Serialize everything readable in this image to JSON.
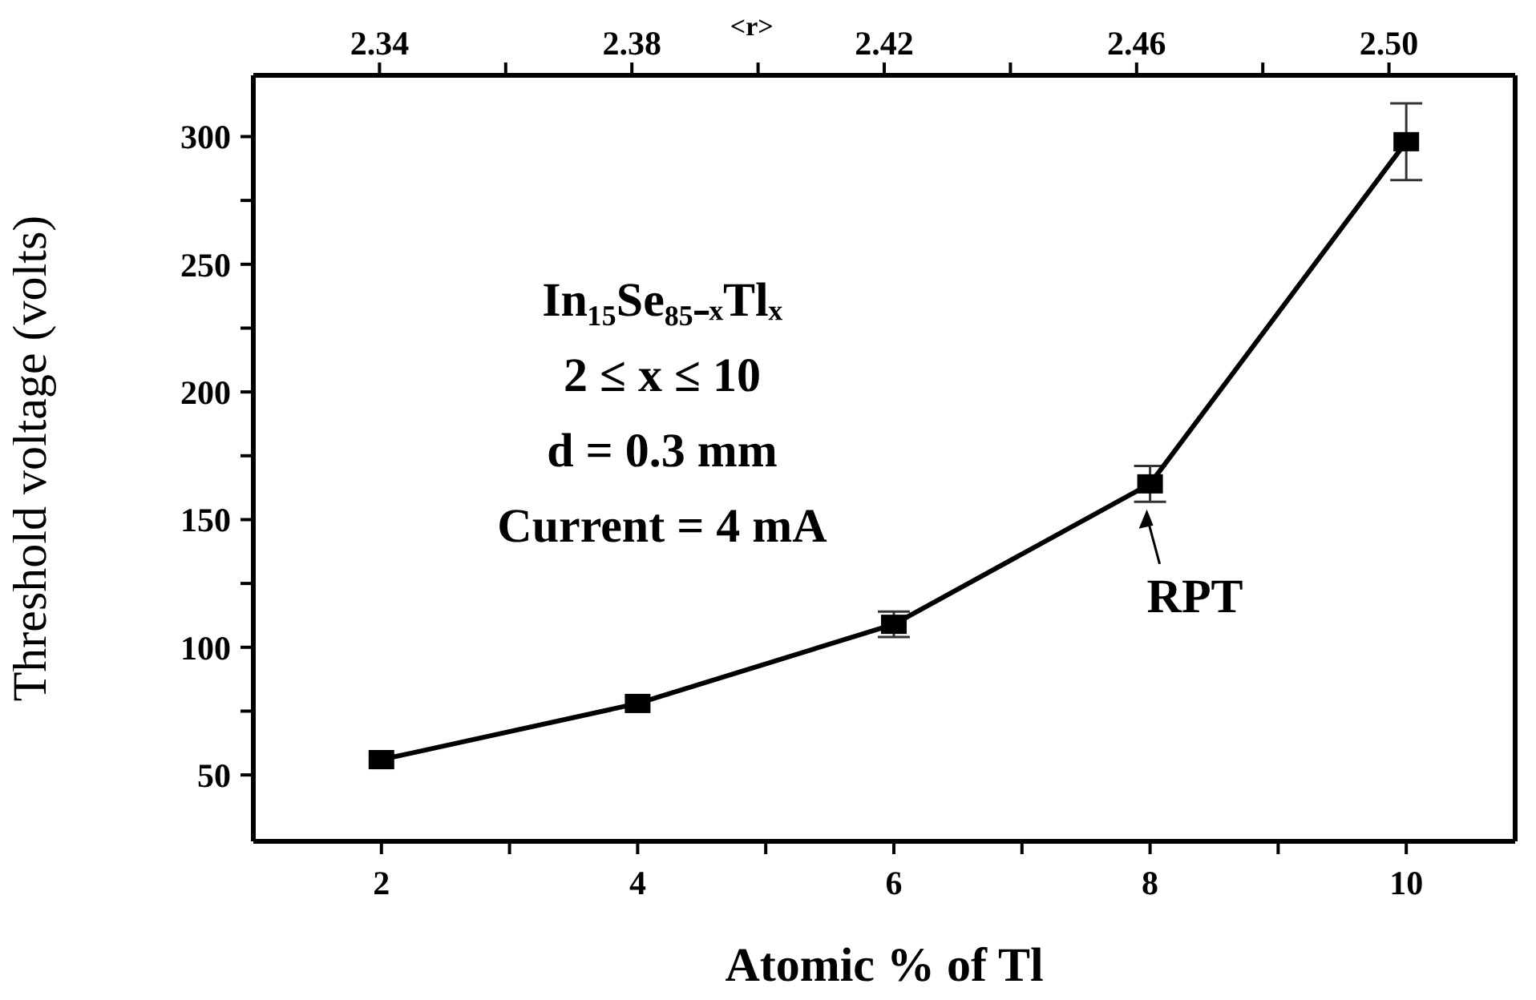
{
  "chart_data": {
    "type": "line",
    "xlabel": "Atomic % of Tl",
    "ylabel": "Threshold voltage (volts)",
    "x2label": "<r>",
    "x": [
      2,
      4,
      6,
      8,
      10
    ],
    "series": [
      {
        "color": "#000000",
        "values": [
          56,
          78,
          109,
          164,
          298
        ],
        "errors": [
          null,
          null,
          5,
          7,
          15
        ]
      }
    ],
    "xlim": [
      1,
      10.85
    ],
    "xticks": [
      2,
      {
        "value": 3,
        "label": null
      },
      4,
      {
        "value": 5,
        "label": null
      },
      6,
      {
        "value": 7,
        "label": null
      },
      8,
      {
        "value": 9,
        "label": null
      },
      10
    ],
    "x2lim": [
      2.32,
      2.52
    ],
    "x2ticks": [
      2.34,
      {
        "value": 2.36,
        "label": null
      },
      2.38,
      {
        "value": 2.4,
        "label": null
      },
      2.42,
      {
        "value": 2.44,
        "label": null
      },
      2.46,
      {
        "value": 2.48,
        "label": null
      },
      {
        "value": 2.5,
        "label": "2.50"
      }
    ],
    "ylim": [
      24,
      324
    ],
    "yticks": [
      50,
      {
        "value": 75,
        "label": null
      },
      100,
      {
        "value": 125,
        "label": null
      },
      150,
      {
        "value": 175,
        "label": null
      },
      200,
      {
        "value": 225,
        "label": null
      },
      250,
      {
        "value": 275,
        "label": null
      },
      300
    ],
    "grid": false,
    "legend": false,
    "marker": "square",
    "line_style": "solid",
    "annotations": [
      "In₁₅Se₈₅₋ₓTlₓ",
      "2 ≤ x ≤ 10",
      "d = 0.3 mm",
      "Current = 4 mA",
      {
        "text": "RPT",
        "x": 8,
        "y": 164
      }
    ]
  }
}
